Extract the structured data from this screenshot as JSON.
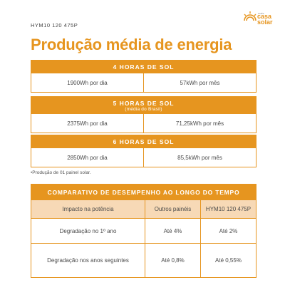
{
  "header": {
    "model_code": "HYM10 120 475P",
    "title": "Produção média de energia"
  },
  "logo": {
    "small_text": "mais",
    "line1": "casa",
    "line2": "solar",
    "color": "#e6951f"
  },
  "production": [
    {
      "heading": "4 HORAS DE SOL",
      "subheading": "",
      "daily": "1900Wh por dia",
      "monthly": "57kWh por mês"
    },
    {
      "heading": "5 HORAS DE SOL",
      "subheading": "(média do Brasil)",
      "daily": "2375Wh por dia",
      "monthly": "71,25kWh por mês"
    },
    {
      "heading": "6 HORAS DE SOL",
      "subheading": "",
      "daily": "2850Wh por dia",
      "monthly": "85,5kWh por mês"
    }
  ],
  "footnote": "•Produção de 01 painel solar.",
  "comparison": {
    "title": "COMPARATIVO DE DESEMPENHO AO LONGO DO TEMPO",
    "columns": [
      "Impacto na potência",
      "Outros painéis",
      "HYM10 120 475P"
    ],
    "rows": [
      [
        "Degradação no 1º ano",
        "Até 4%",
        "Até 2%"
      ],
      [
        "Degradação nos anos seguintes",
        "Até 0,8%",
        "Até 0,55%"
      ]
    ]
  },
  "colors": {
    "accent": "#e6951f",
    "header_row_bg": "#f7d9b6",
    "text": "#4a4a4a"
  }
}
